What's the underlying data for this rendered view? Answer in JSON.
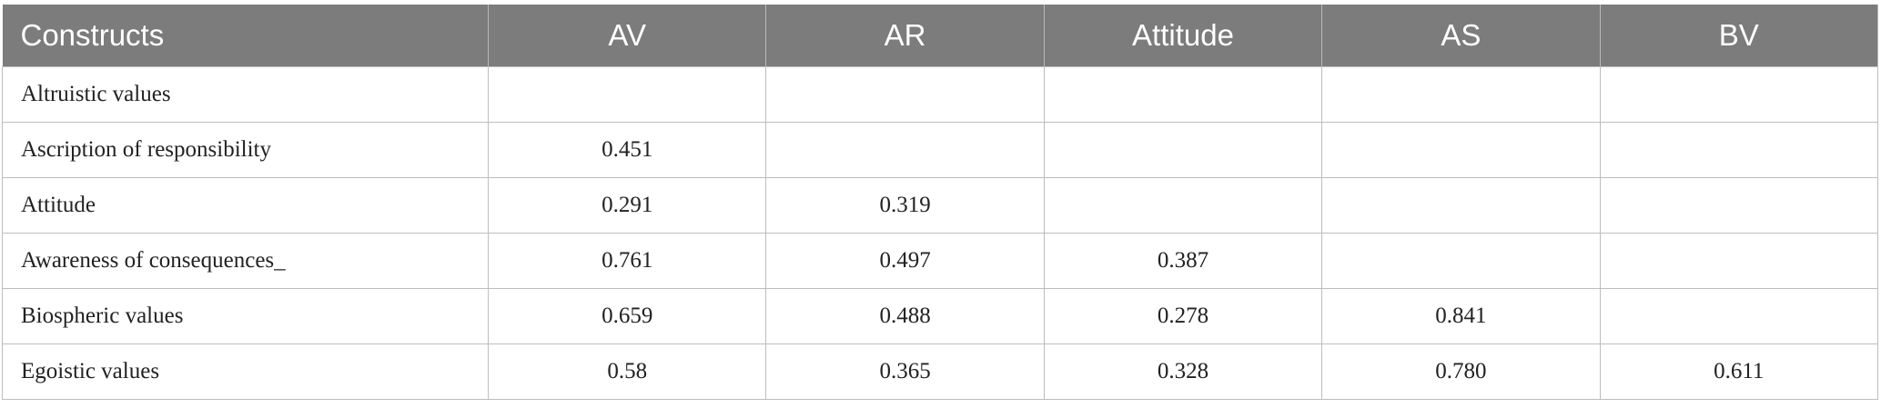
{
  "table": {
    "header": [
      "Constructs",
      "AV",
      "AR",
      "Attitude",
      "AS",
      "BV"
    ],
    "rows": [
      [
        "Altruistic values",
        null,
        null,
        null,
        null,
        null
      ],
      [
        "Ascription of responsibility",
        "0.451",
        null,
        null,
        null,
        null
      ],
      [
        "Attitude",
        "0.291",
        "0.319",
        null,
        null,
        null
      ],
      [
        "Awareness of consequences_",
        "0.761",
        "0.497",
        "0.387",
        null,
        null
      ],
      [
        "Biospheric values",
        "0.659",
        "0.488",
        "0.278",
        "0.841",
        null
      ],
      [
        "Egoistic values",
        "0.58",
        "0.365",
        "0.328",
        "0.780",
        "0.611"
      ]
    ]
  }
}
